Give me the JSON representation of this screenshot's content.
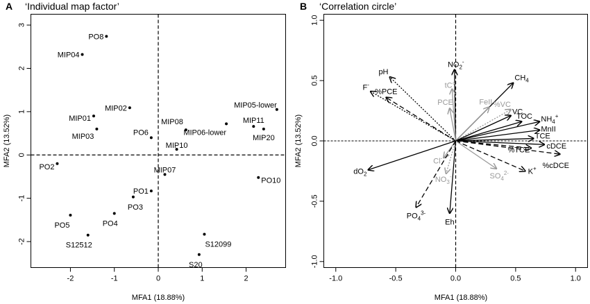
{
  "chart_data": [
    {
      "type": "scatter",
      "panel": "A",
      "title": "‘Individual map factor’",
      "xlabel": "MFA1 (18.88%)",
      "ylabel": "MFA2 (13.52%)",
      "xlim": [
        -2.9,
        2.9
      ],
      "ylim": [
        -2.6,
        3.25
      ],
      "xticks": [
        -2,
        -1,
        0,
        1,
        2
      ],
      "yticks": [
        -2,
        -1,
        0,
        1,
        2,
        3
      ],
      "reference_lines": {
        "x": 0,
        "y": 0
      },
      "points": [
        {
          "label": "PO8",
          "x": -1.18,
          "y": 2.74,
          "anchor": "end",
          "dx": -4,
          "dy": 0
        },
        {
          "label": "MIP04",
          "x": -1.73,
          "y": 2.32,
          "anchor": "end",
          "dx": -4,
          "dy": 0
        },
        {
          "label": "MIP02",
          "x": -0.65,
          "y": 1.09,
          "anchor": "end",
          "dx": -4,
          "dy": 0
        },
        {
          "label": "MIP01",
          "x": -1.47,
          "y": 0.9,
          "anchor": "end",
          "dx": -4,
          "dy": 3
        },
        {
          "label": "MIP03",
          "x": -1.4,
          "y": 0.6,
          "anchor": "end",
          "dx": -4,
          "dy": 10
        },
        {
          "label": "PO6",
          "x": -0.16,
          "y": 0.4,
          "anchor": "end",
          "dx": -4,
          "dy": -8
        },
        {
          "label": "MIP08",
          "x": 0.63,
          "y": 0.58,
          "anchor": "end",
          "dx": -4,
          "dy": -12
        },
        {
          "label": "MIP10",
          "x": 0.42,
          "y": 0.13,
          "anchor": "middle",
          "dx": 0,
          "dy": -6
        },
        {
          "label": "MIP06-lower",
          "x": 1.55,
          "y": 0.72,
          "anchor": "end",
          "dx": 0,
          "dy": 12
        },
        {
          "label": "MIP05-lower",
          "x": 2.7,
          "y": 1.05,
          "anchor": "end",
          "dx": 0,
          "dy": -7
        },
        {
          "label": "MIP11",
          "x": 2.17,
          "y": 0.66,
          "anchor": "middle",
          "dx": 0,
          "dy": -9
        },
        {
          "label": "MIP20",
          "x": 2.4,
          "y": 0.6,
          "anchor": "middle",
          "dx": 0,
          "dy": 12
        },
        {
          "label": "PO2",
          "x": -2.3,
          "y": -0.2,
          "anchor": "end",
          "dx": -4,
          "dy": 4
        },
        {
          "label": "MIP07",
          "x": 0.15,
          "y": -0.45,
          "anchor": "middle",
          "dx": 0,
          "dy": -7
        },
        {
          "label": "PO10",
          "x": 2.28,
          "y": -0.52,
          "anchor": "start",
          "dx": 4,
          "dy": 4
        },
        {
          "label": "PO1",
          "x": -0.16,
          "y": -0.83,
          "anchor": "end",
          "dx": -4,
          "dy": 0
        },
        {
          "label": "PO3",
          "x": -0.57,
          "y": -0.97,
          "anchor": "middle",
          "dx": 3,
          "dy": 14
        },
        {
          "label": "PO4",
          "x": -1.0,
          "y": -1.35,
          "anchor": "middle",
          "dx": -6,
          "dy": 14
        },
        {
          "label": "PO5",
          "x": -2.0,
          "y": -1.39,
          "anchor": "middle",
          "dx": -12,
          "dy": 14
        },
        {
          "label": "S12512",
          "x": -1.6,
          "y": -1.85,
          "anchor": "middle",
          "dx": -13,
          "dy": 14
        },
        {
          "label": "S12099",
          "x": 1.05,
          "y": -1.83,
          "anchor": "start",
          "dx": 1,
          "dy": 14
        },
        {
          "label": "S20",
          "x": 0.93,
          "y": -2.3,
          "anchor": "middle",
          "dx": -5,
          "dy": 14
        }
      ]
    },
    {
      "type": "vector",
      "panel": "B",
      "title": "‘Correlation circle’",
      "xlabel": "MFA1 (18.88%)",
      "ylabel": "MFA2 (13.52%)",
      "xlim": [
        -1.1,
        1.1
      ],
      "ylim": [
        -1.05,
        1.05
      ],
      "xticks": [
        -1.0,
        -0.5,
        0.0,
        0.5,
        1.0
      ],
      "xtick_labels": [
        "-1.0",
        "-0.5",
        "0.0",
        "0.5",
        "1.0"
      ],
      "yticks": [
        -1.0,
        -0.5,
        0.0,
        0.5,
        1.0
      ],
      "ytick_labels": [
        "-1.0",
        "-0.5",
        "0.0",
        "0.5",
        "1.0"
      ],
      "reference_lines": {
        "x": 0,
        "y": 0
      },
      "colors": {
        "black": "#000000",
        "grey": "#999999"
      },
      "vectors": [
        {
          "label": "CH4",
          "base": "CH",
          "sub": "4",
          "x": 0.48,
          "y": 0.48,
          "style": "solid",
          "color": "black",
          "anchor": "start",
          "dx": 2,
          "dy": -4
        },
        {
          "label": "NO2-",
          "base": "NO",
          "sub": "2",
          "sup": "-",
          "x": -0.01,
          "y": 0.59,
          "style": "solid",
          "color": "black",
          "anchor": "middle",
          "dx": 2,
          "dy": -4
        },
        {
          "label": "pH",
          "base": "pH",
          "x": -0.55,
          "y": 0.53,
          "style": "dotted",
          "color": "black",
          "anchor": "end",
          "dx": -2,
          "dy": -4
        },
        {
          "label": "F-",
          "base": "F",
          "sup": "-",
          "x": -0.71,
          "y": 0.41,
          "style": "dotted",
          "color": "black",
          "anchor": "end",
          "dx": -2,
          "dy": -2
        },
        {
          "label": "%PCE",
          "base": "%PCE",
          "x": -0.58,
          "y": 0.36,
          "style": "dashed",
          "color": "black",
          "anchor": "middle",
          "dx": 0,
          "dy": -5
        },
        {
          "label": "tC°",
          "base": "tC°",
          "x": -0.03,
          "y": 0.43,
          "style": "solid",
          "color": "grey",
          "anchor": "middle",
          "dx": -3,
          "dy": -2
        },
        {
          "label": "PCE",
          "base": "PCE",
          "x": -0.05,
          "y": 0.27,
          "style": "solid",
          "color": "grey",
          "anchor": "end",
          "dx": 5,
          "dy": -5
        },
        {
          "label": "FeII",
          "base": "FeII",
          "x": 0.28,
          "y": 0.28,
          "style": "solid",
          "color": "grey",
          "anchor": "middle",
          "dx": -5,
          "dy": -4
        },
        {
          "label": "%VC",
          "base": "%VC",
          "x": 0.46,
          "y": 0.26,
          "style": "dotted",
          "color": "grey",
          "anchor": "end",
          "dx": 0,
          "dy": -4
        },
        {
          "label": "VC",
          "base": "VC",
          "x": 0.46,
          "y": 0.21,
          "style": "solid",
          "color": "black",
          "anchor": "start",
          "dx": 2,
          "dy": -2
        },
        {
          "label": "TOC",
          "base": "TOC",
          "x": 0.55,
          "y": 0.16,
          "style": "solid",
          "color": "black",
          "anchor": "middle",
          "dx": 4,
          "dy": -4
        },
        {
          "label": "NH4+",
          "base": "NH",
          "sub": "4",
          "sup": "+",
          "x": 0.7,
          "y": 0.16,
          "style": "solid",
          "color": "black",
          "anchor": "start",
          "dx": 2,
          "dy": 0
        },
        {
          "label": "MnII",
          "base": "MnII",
          "x": 0.7,
          "y": 0.09,
          "style": "solid",
          "color": "black",
          "anchor": "start",
          "dx": 2,
          "dy": 2
        },
        {
          "label": "TCE",
          "base": "TCE",
          "x": 0.65,
          "y": 0.02,
          "style": "solid",
          "color": "black",
          "anchor": "start",
          "dx": 2,
          "dy": 0
        },
        {
          "label": "cDCE",
          "base": "cDCE",
          "x": 0.74,
          "y": -0.03,
          "style": "solid",
          "color": "black",
          "anchor": "start",
          "dx": 3,
          "dy": 6
        },
        {
          "label": "%TCE",
          "base": "%TCE",
          "x": 0.63,
          "y": -0.06,
          "style": "dashed",
          "color": "black",
          "anchor": "end",
          "dx": -2,
          "dy": 6
        },
        {
          "label": "%cDCE",
          "base": "%cDCE",
          "x": 0.87,
          "y": -0.11,
          "style": "dashed",
          "color": "black",
          "anchor": "middle",
          "dx": -6,
          "dy": 20
        },
        {
          "label": "K+",
          "base": "K",
          "sup": "+",
          "x": 0.58,
          "y": -0.25,
          "style": "dashed",
          "color": "black",
          "anchor": "start",
          "dx": 4,
          "dy": 4
        },
        {
          "label": "SO42-",
          "base": "SO",
          "sub": "4",
          "sup": "2-",
          "x": 0.34,
          "y": -0.23,
          "style": "solid",
          "color": "grey",
          "anchor": "middle",
          "dx": 4,
          "dy": 14
        },
        {
          "label": "Cl-",
          "base": "Cl",
          "sup": "-",
          "x": -0.1,
          "y": -0.14,
          "style": "solid",
          "color": "grey",
          "anchor": "end",
          "dx": -2,
          "dy": 8
        },
        {
          "label": "NO3-",
          "base": "NO",
          "sub": "3",
          "sup": "-",
          "x": -0.08,
          "y": -0.27,
          "style": "dotted",
          "color": "grey",
          "anchor": "middle",
          "dx": -4,
          "dy": 12
        },
        {
          "label": "dO2",
          "base": "dO",
          "sub": "2",
          "x": -0.73,
          "y": -0.24,
          "style": "solid",
          "color": "black",
          "anchor": "end",
          "dx": -2,
          "dy": 6
        },
        {
          "label": "PO43-",
          "base": "PO",
          "sub": "4",
          "sup": "3-",
          "x": -0.33,
          "y": -0.55,
          "style": "dashed",
          "color": "black",
          "anchor": "middle",
          "dx": 0,
          "dy": 16
        },
        {
          "label": "Eh",
          "base": "Eh",
          "x": -0.05,
          "y": -0.6,
          "style": "solid",
          "color": "black",
          "anchor": "middle",
          "dx": 0,
          "dy": 16
        }
      ]
    }
  ]
}
